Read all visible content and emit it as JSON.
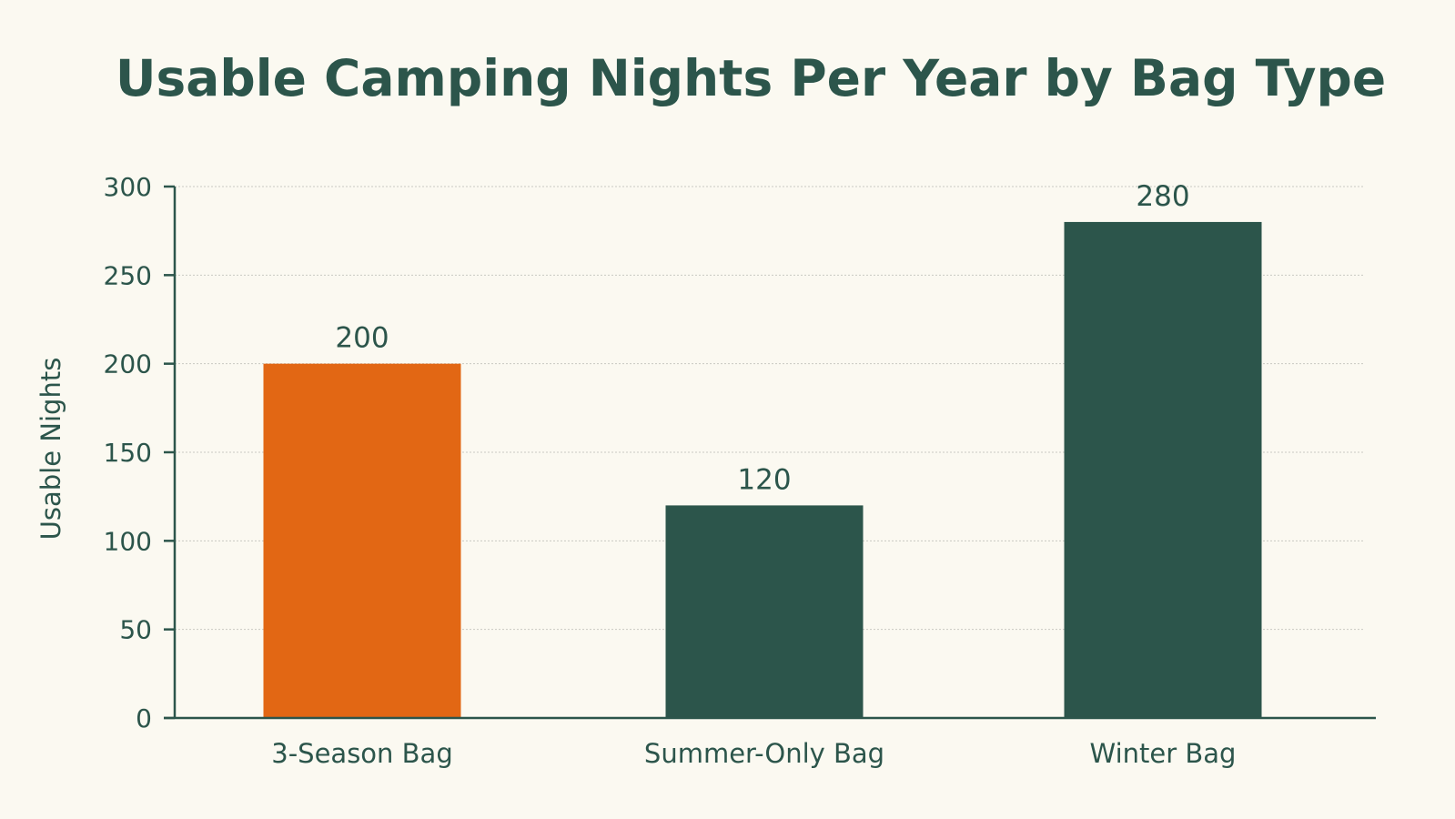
{
  "chart_data": {
    "type": "bar",
    "title": "Usable Camping Nights Per Year by Bag Type",
    "xlabel": "",
    "ylabel": "Usable Nights",
    "categories": [
      "3-Season Bag",
      "Summer-Only Bag",
      "Winter Bag"
    ],
    "values": [
      200,
      120,
      280
    ],
    "value_labels": [
      "200",
      "120",
      "280"
    ],
    "bar_colors": [
      "#e26714",
      "#2c554b",
      "#2c554b"
    ],
    "ylim": [
      0,
      300
    ],
    "yticks": [
      0,
      50,
      100,
      150,
      200,
      250,
      300
    ],
    "grid": true,
    "legend": "none"
  },
  "colors": {
    "text": "#2c554b",
    "axis": "#2c554b",
    "grid": "#c9c9c2",
    "background": "#fbf9f1"
  }
}
